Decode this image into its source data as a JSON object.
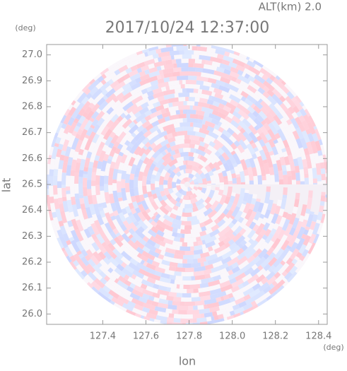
{
  "chart_data": {
    "type": "radar-ppi",
    "title": "2017/10/24 12:37:00",
    "annotation": "ALT(km) 2.0",
    "x_label": "lon",
    "y_label": "lat",
    "x_unit": "(deg)",
    "y_unit": "(deg)",
    "xlim": [
      127.14,
      128.44
    ],
    "ylim": [
      25.96,
      27.04
    ],
    "xticks": [
      127.4,
      127.6,
      127.8,
      {
        "value": 128.0,
        "label": "128.0"
      },
      128.2,
      128.4
    ],
    "yticks": [
      {
        "value": 26.0,
        "label": "26.0"
      },
      26.1,
      26.2,
      26.3,
      26.4,
      26.5,
      26.6,
      26.7,
      26.8,
      26.9,
      {
        "value": 27.0,
        "label": "27.0"
      }
    ]
  }
}
